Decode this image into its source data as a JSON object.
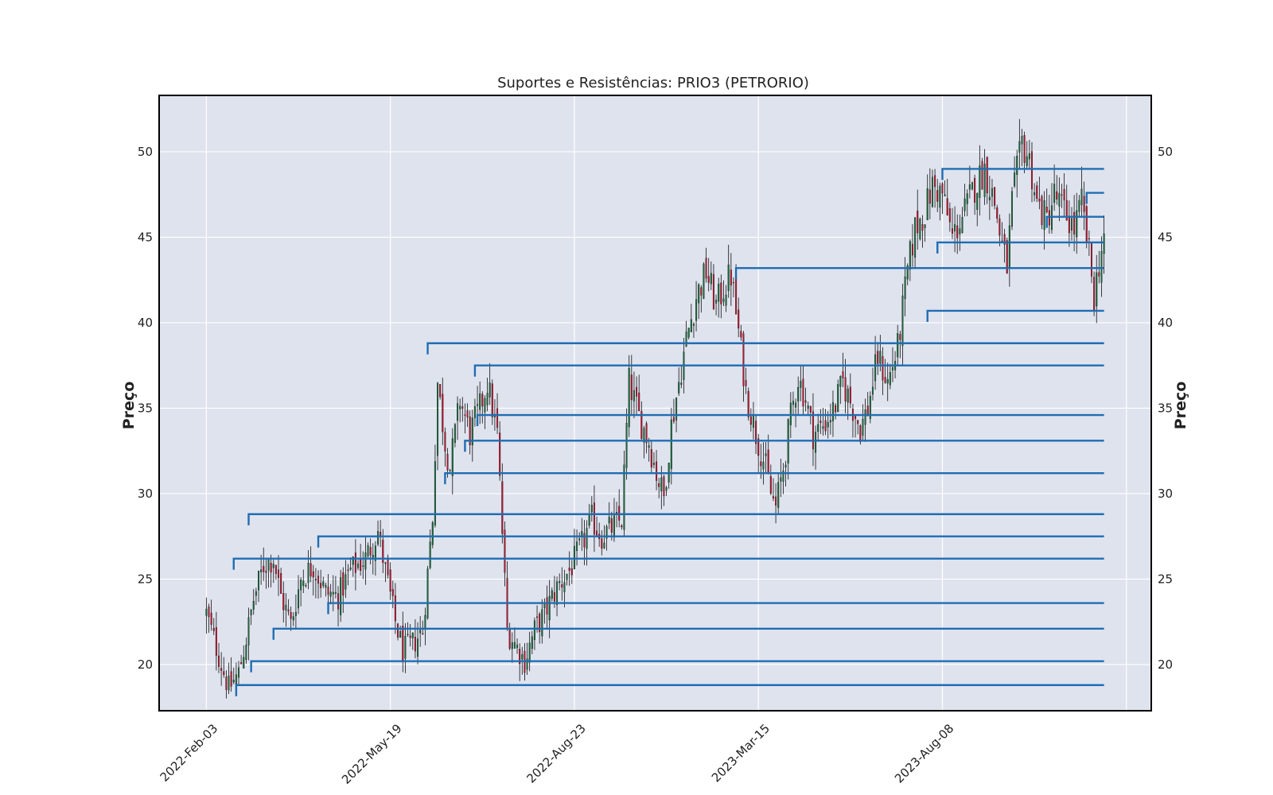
{
  "chart_data": {
    "type": "candlestick",
    "title": "Suportes e Resistências: PRIO3 (PETRORIO)",
    "ylabel": "Preço",
    "ylim": [
      17.3,
      53.3
    ],
    "yticks": [
      20,
      25,
      30,
      35,
      40,
      45,
      50
    ],
    "xticks": [
      {
        "label": "2022-Feb-03",
        "index": 0
      },
      {
        "label": "2022-May-19",
        "index": 74
      },
      {
        "label": "2022-Aug-23",
        "index": 148
      },
      {
        "label": "2023-Mar-15",
        "index": 222
      },
      {
        "label": "2023-Aug-08",
        "index": 296
      }
    ],
    "xlim": [
      -19,
      380
    ],
    "n_candles": 362,
    "grid": true,
    "background": "#dfe3ee",
    "up_color": "#1a6b3c",
    "down_color": "#b5172f",
    "line_color": "#1f6db3",
    "price_path": [
      [
        0,
        23.0
      ],
      [
        6,
        20.0
      ],
      [
        9,
        18.6
      ],
      [
        13,
        19.5
      ],
      [
        16,
        21.5
      ],
      [
        19,
        23.8
      ],
      [
        23,
        25.8
      ],
      [
        27,
        26.2
      ],
      [
        30,
        24.0
      ],
      [
        34,
        22.4
      ],
      [
        38,
        25.0
      ],
      [
        43,
        25.8
      ],
      [
        48,
        24.2
      ],
      [
        53,
        24.0
      ],
      [
        58,
        25.5
      ],
      [
        64,
        26.2
      ],
      [
        69,
        27.8
      ],
      [
        72,
        25.5
      ],
      [
        76,
        22.5
      ],
      [
        79,
        20.8
      ],
      [
        83,
        21.2
      ],
      [
        87,
        22.0
      ],
      [
        91,
        28.7
      ],
      [
        93,
        36.5
      ],
      [
        96,
        33.0
      ],
      [
        98,
        31.5
      ],
      [
        102,
        35.5
      ],
      [
        106,
        33.5
      ],
      [
        110,
        35.0
      ],
      [
        113,
        36.5
      ],
      [
        117,
        33.5
      ],
      [
        121,
        22.0
      ],
      [
        125,
        21.0
      ],
      [
        128,
        20.2
      ],
      [
        132,
        22.0
      ],
      [
        136,
        23.0
      ],
      [
        141,
        24.5
      ],
      [
        146,
        25.5
      ],
      [
        151,
        27.0
      ],
      [
        155,
        28.5
      ],
      [
        159,
        27.5
      ],
      [
        163,
        28.0
      ],
      [
        167,
        28.5
      ],
      [
        170,
        36.5
      ],
      [
        174,
        34.5
      ],
      [
        178,
        33.0
      ],
      [
        181,
        31.2
      ],
      [
        184,
        29.8
      ],
      [
        187,
        34.0
      ],
      [
        190,
        36.5
      ],
      [
        193,
        39.0
      ],
      [
        197,
        41.5
      ],
      [
        201,
        43.0
      ],
      [
        205,
        41.0
      ],
      [
        208,
        42.0
      ],
      [
        211,
        42.8
      ],
      [
        214,
        39.5
      ],
      [
        217,
        36.0
      ],
      [
        221,
        33.5
      ],
      [
        225,
        31.5
      ],
      [
        227,
        30.0
      ],
      [
        229,
        29.2
      ],
      [
        232,
        31.5
      ],
      [
        235,
        34.5
      ],
      [
        238,
        36.8
      ],
      [
        241,
        35.5
      ],
      [
        244,
        33.5
      ],
      [
        248,
        34.0
      ],
      [
        252,
        34.8
      ],
      [
        256,
        36.5
      ],
      [
        260,
        35.0
      ],
      [
        263,
        33.8
      ],
      [
        266,
        35.0
      ],
      [
        270,
        38.0
      ],
      [
        274,
        36.5
      ],
      [
        278,
        38.5
      ],
      [
        282,
        43.0
      ],
      [
        285,
        45.5
      ],
      [
        289,
        46.5
      ],
      [
        292,
        48.0
      ],
      [
        296,
        47.5
      ],
      [
        300,
        45.0
      ],
      [
        305,
        46.5
      ],
      [
        309,
        48.0
      ],
      [
        313,
        49.0
      ],
      [
        317,
        47.0
      ],
      [
        320,
        44.5
      ],
      [
        322,
        43.3
      ],
      [
        324,
        47.0
      ],
      [
        328,
        50.5
      ],
      [
        331,
        49.5
      ],
      [
        334,
        47.0
      ],
      [
        338,
        46.0
      ],
      [
        341,
        47.5
      ],
      [
        345,
        46.5
      ],
      [
        349,
        45.5
      ],
      [
        352,
        47.0
      ],
      [
        355,
        44.0
      ],
      [
        357,
        41.5
      ],
      [
        359,
        43.5
      ],
      [
        361,
        45.0
      ]
    ],
    "gaps": [
      [
        90,
        91
      ],
      [
        120,
        121
      ],
      [
        168,
        169
      ]
    ],
    "levels": [
      {
        "start": 89,
        "price": 38.8
      },
      {
        "start": 213,
        "price": 43.2
      },
      {
        "start": 290,
        "price": 40.7
      },
      {
        "start": 108,
        "price": 37.5
      },
      {
        "start": 109,
        "price": 34.6
      },
      {
        "start": 104,
        "price": 33.1
      },
      {
        "start": 96,
        "price": 31.2
      },
      {
        "start": 17,
        "price": 28.8
      },
      {
        "start": 45,
        "price": 27.5
      },
      {
        "start": 11,
        "price": 26.2
      },
      {
        "start": 49,
        "price": 23.6
      },
      {
        "start": 27,
        "price": 22.1
      },
      {
        "start": 18,
        "price": 20.2
      },
      {
        "start": 12,
        "price": 18.8
      },
      {
        "start": 296,
        "price": 49.0
      },
      {
        "start": 294,
        "price": 44.7
      },
      {
        "start": 338,
        "price": 46.2
      },
      {
        "start": 354,
        "price": 47.6
      }
    ],
    "level_end": 361
  }
}
